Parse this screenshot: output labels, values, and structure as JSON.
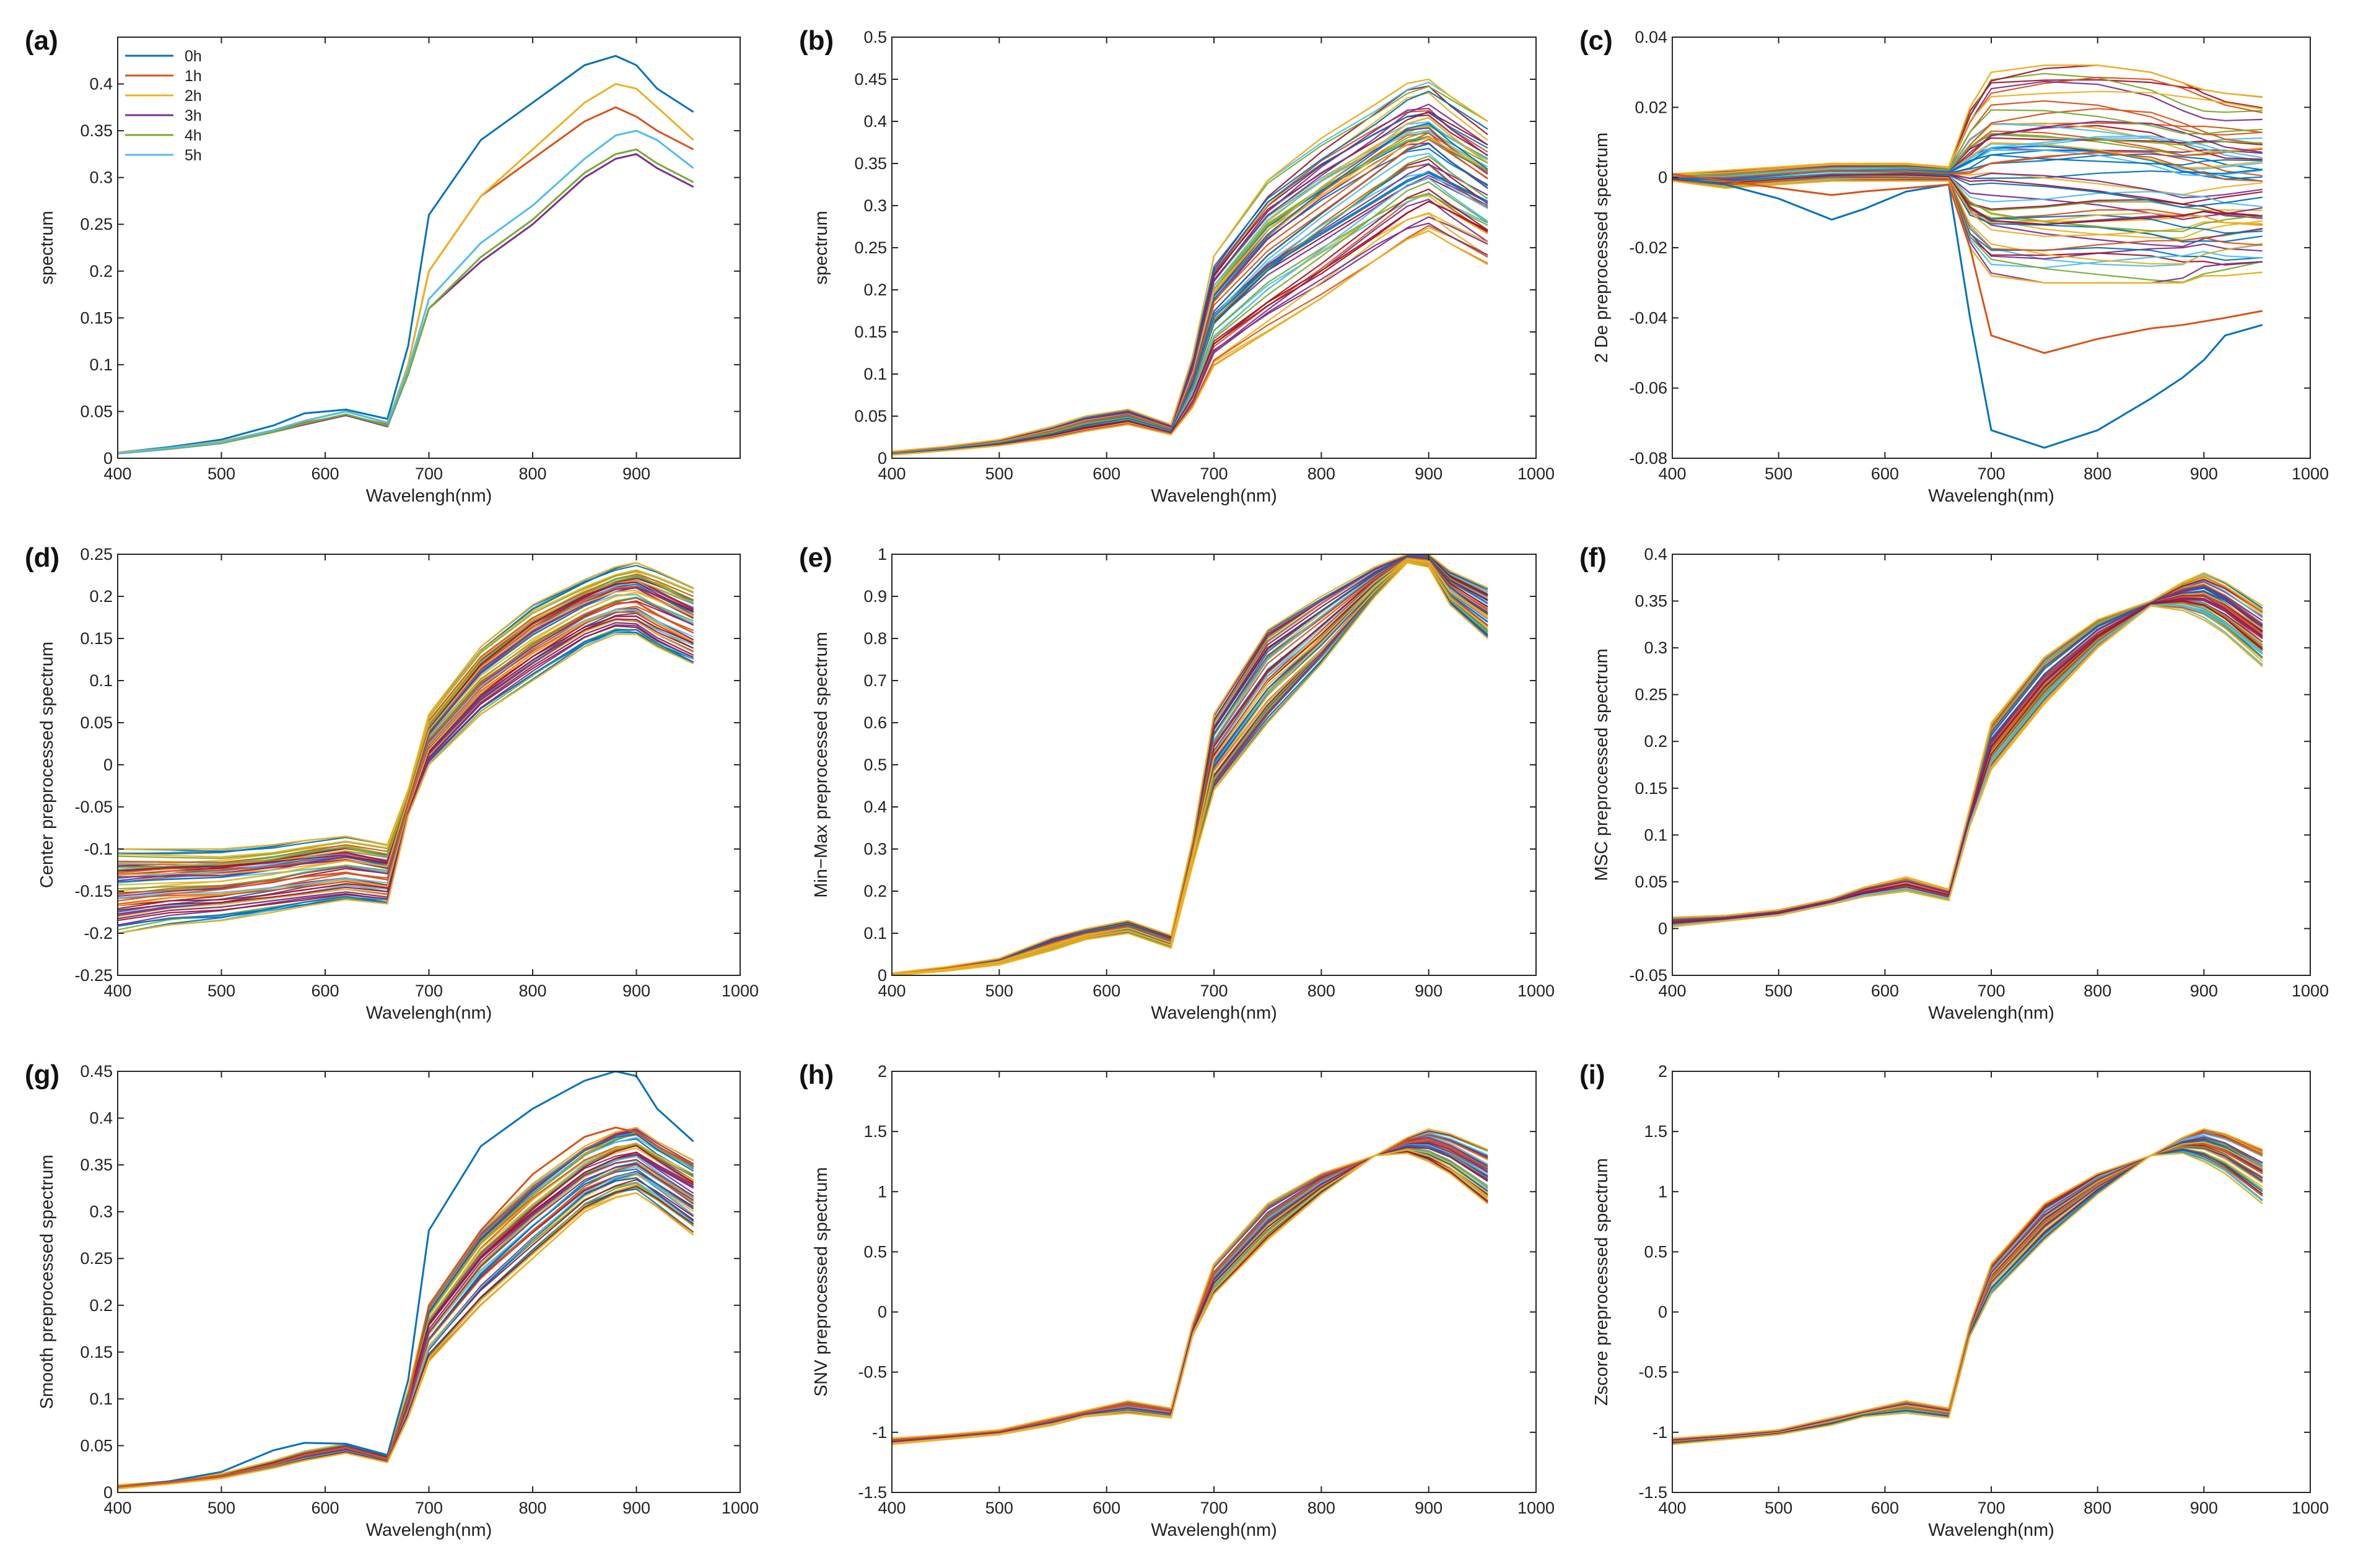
{
  "figure": {
    "palette": [
      "#0072BD",
      "#D95319",
      "#EDB120",
      "#7E2F8E",
      "#77AC30",
      "#4DBEEE",
      "#A2142F"
    ]
  },
  "chart_data": [
    {
      "panel": "(a)",
      "type": "line",
      "xlabel": "Wavelengh(nm)",
      "ylabel": "spectrum",
      "xlim": [
        400,
        1000
      ],
      "ylim": [
        0,
        0.45
      ],
      "xticks": [
        "400",
        "500",
        "600",
        "700",
        "800",
        "900"
      ],
      "yticks": [
        "0",
        "0.05",
        "0.1",
        "0.15",
        "0.2",
        "0.25",
        "0.3",
        "0.35",
        "0.4"
      ],
      "x": [
        400,
        450,
        500,
        550,
        580,
        620,
        660,
        680,
        700,
        750,
        800,
        850,
        880,
        900,
        920,
        955
      ],
      "series": [
        {
          "name": "0h",
          "color": "#0072BD",
          "values": [
            0.006,
            0.012,
            0.02,
            0.035,
            0.048,
            0.052,
            0.042,
            0.12,
            0.26,
            0.34,
            0.38,
            0.42,
            0.43,
            0.42,
            0.395,
            0.37
          ]
        },
        {
          "name": "1h",
          "color": "#D95319",
          "values": [
            0.006,
            0.011,
            0.018,
            0.03,
            0.038,
            0.046,
            0.036,
            0.1,
            0.2,
            0.28,
            0.32,
            0.36,
            0.375,
            0.365,
            0.35,
            0.33
          ]
        },
        {
          "name": "2h",
          "color": "#EDB120",
          "values": [
            0.006,
            0.011,
            0.018,
            0.03,
            0.04,
            0.05,
            0.038,
            0.1,
            0.2,
            0.28,
            0.33,
            0.38,
            0.4,
            0.395,
            0.375,
            0.34
          ]
        },
        {
          "name": "3h",
          "color": "#7E2F8E",
          "values": [
            0.005,
            0.01,
            0.016,
            0.028,
            0.036,
            0.046,
            0.034,
            0.09,
            0.16,
            0.21,
            0.25,
            0.3,
            0.32,
            0.325,
            0.31,
            0.29
          ]
        },
        {
          "name": "4h",
          "color": "#77AC30",
          "values": [
            0.005,
            0.01,
            0.016,
            0.028,
            0.037,
            0.047,
            0.035,
            0.09,
            0.16,
            0.215,
            0.255,
            0.305,
            0.325,
            0.33,
            0.315,
            0.295
          ]
        },
        {
          "name": "5h",
          "color": "#4DBEEE",
          "values": [
            0.005,
            0.011,
            0.017,
            0.03,
            0.04,
            0.05,
            0.038,
            0.095,
            0.17,
            0.23,
            0.27,
            0.32,
            0.345,
            0.35,
            0.34,
            0.31
          ]
        }
      ],
      "legend": "top-left"
    },
    {
      "panel": "(b)",
      "type": "line",
      "bundle": true,
      "count": 60,
      "xlabel": "Wavelengh(nm)",
      "ylabel": "spectrum",
      "xlim": [
        400,
        1000
      ],
      "ylim": [
        0,
        0.5
      ],
      "xticks": [
        "400",
        "500",
        "600",
        "700",
        "800",
        "900",
        "1000"
      ],
      "yticks": [
        "0",
        "0.05",
        "0.1",
        "0.15",
        "0.2",
        "0.25",
        "0.3",
        "0.35",
        "0.4",
        "0.45",
        "0.5"
      ],
      "x": [
        400,
        450,
        500,
        550,
        580,
        620,
        660,
        680,
        700,
        750,
        800,
        850,
        880,
        900,
        920,
        955
      ],
      "low": [
        0.004,
        0.009,
        0.015,
        0.024,
        0.032,
        0.04,
        0.028,
        0.06,
        0.11,
        0.15,
        0.19,
        0.235,
        0.26,
        0.27,
        0.255,
        0.23
      ],
      "high": [
        0.008,
        0.014,
        0.022,
        0.038,
        0.05,
        0.058,
        0.04,
        0.12,
        0.24,
        0.33,
        0.38,
        0.42,
        0.445,
        0.45,
        0.43,
        0.4
      ]
    },
    {
      "panel": "(c)",
      "type": "line",
      "bundle": true,
      "count": 60,
      "xlabel": "Wavelengh(nm)",
      "ylabel": "2 De preprocessed spectrum",
      "xlim": [
        400,
        1000
      ],
      "ylim": [
        -0.08,
        0.04
      ],
      "xticks": [
        "400",
        "500",
        "600",
        "700",
        "800",
        "900",
        "1000"
      ],
      "yticks": [
        "-0.08",
        "-0.06",
        "-0.04",
        "-0.02",
        "0",
        "0.02",
        "0.04"
      ],
      "x": [
        400,
        450,
        500,
        550,
        580,
        620,
        660,
        680,
        700,
        750,
        800,
        850,
        880,
        900,
        920,
        955
      ],
      "low": [
        -0.001,
        -0.003,
        -0.002,
        -0.001,
        -0.001,
        -0.001,
        -0.001,
        -0.02,
        -0.028,
        -0.03,
        -0.03,
        -0.03,
        -0.03,
        -0.028,
        -0.028,
        -0.027
      ],
      "high": [
        0.001,
        0.002,
        0.003,
        0.004,
        0.004,
        0.004,
        0.003,
        0.02,
        0.03,
        0.032,
        0.032,
        0.03,
        0.027,
        0.025,
        0.024,
        0.023
      ],
      "outliers": [
        {
          "color": "#0072BD",
          "values": [
            0,
            -0.002,
            -0.006,
            -0.012,
            -0.009,
            -0.004,
            -0.002,
            -0.04,
            -0.072,
            -0.077,
            -0.072,
            -0.063,
            -0.057,
            -0.052,
            -0.045,
            -0.042
          ]
        },
        {
          "color": "#D95319",
          "values": [
            0.001,
            -0.001,
            -0.003,
            -0.005,
            -0.004,
            -0.003,
            -0.002,
            -0.02,
            -0.045,
            -0.05,
            -0.046,
            -0.043,
            -0.042,
            -0.041,
            -0.04,
            -0.038
          ]
        }
      ]
    },
    {
      "panel": "(d)",
      "type": "line",
      "bundle": true,
      "count": 60,
      "xlabel": "Wavelengh(nm)",
      "ylabel": "Center preprocessed spectrum",
      "xlim": [
        400,
        1000
      ],
      "ylim": [
        -0.25,
        0.25
      ],
      "xticks": [
        "400",
        "500",
        "600",
        "700",
        "800",
        "900",
        "1000"
      ],
      "yticks": [
        "-0.25",
        "-0.2",
        "-0.15",
        "-0.1",
        "-0.05",
        "0",
        "0.05",
        "0.1",
        "0.15",
        "0.2",
        "0.25"
      ],
      "x": [
        400,
        450,
        500,
        550,
        580,
        620,
        660,
        680,
        700,
        750,
        800,
        850,
        880,
        900,
        920,
        955
      ],
      "low": [
        -0.2,
        -0.19,
        -0.185,
        -0.175,
        -0.168,
        -0.16,
        -0.165,
        -0.06,
        0.0,
        0.06,
        0.1,
        0.14,
        0.155,
        0.155,
        0.14,
        0.12
      ],
      "high": [
        -0.1,
        -0.1,
        -0.1,
        -0.095,
        -0.09,
        -0.085,
        -0.095,
        -0.03,
        0.06,
        0.14,
        0.19,
        0.22,
        0.235,
        0.24,
        0.23,
        0.21
      ]
    },
    {
      "panel": "(e)",
      "type": "line",
      "bundle": true,
      "count": 60,
      "xlabel": "Wavelengh(nm)",
      "ylabel": "Min−Max preprocessed spectrum",
      "xlim": [
        400,
        1000
      ],
      "ylim": [
        0,
        1
      ],
      "xticks": [
        "400",
        "500",
        "600",
        "700",
        "800",
        "900",
        "1000"
      ],
      "yticks": [
        "0",
        "0.1",
        "0.2",
        "0.3",
        "0.4",
        "0.5",
        "0.6",
        "0.7",
        "0.8",
        "0.9",
        "1"
      ],
      "x": [
        400,
        450,
        500,
        550,
        580,
        620,
        660,
        680,
        700,
        750,
        800,
        850,
        880,
        900,
        920,
        955
      ],
      "low": [
        0,
        0.01,
        0.025,
        0.06,
        0.085,
        0.1,
        0.065,
        0.26,
        0.44,
        0.6,
        0.74,
        0.9,
        0.98,
        0.97,
        0.88,
        0.8
      ],
      "high": [
        0.005,
        0.02,
        0.04,
        0.09,
        0.11,
        0.13,
        0.095,
        0.32,
        0.62,
        0.82,
        0.9,
        0.97,
        1.0,
        1.0,
        0.96,
        0.92
      ]
    },
    {
      "panel": "(f)",
      "type": "line",
      "bundle": true,
      "count": 60,
      "xlabel": "Wavelengh(nm)",
      "ylabel": "MSC preprocessed spectrum",
      "xlim": [
        400,
        1000
      ],
      "ylim": [
        -0.05,
        0.4
      ],
      "xticks": [
        "400",
        "500",
        "600",
        "700",
        "800",
        "900",
        "1000"
      ],
      "yticks": [
        "-0.05",
        "0",
        "0.05",
        "0.1",
        "0.15",
        "0.2",
        "0.25",
        "0.3",
        "0.35",
        "0.4"
      ],
      "x": [
        400,
        450,
        500,
        550,
        580,
        620,
        660,
        680,
        700,
        750,
        800,
        850,
        880,
        900,
        920,
        955
      ],
      "low": [
        0.002,
        0.008,
        0.014,
        0.026,
        0.034,
        0.04,
        0.03,
        0.11,
        0.17,
        0.24,
        0.3,
        0.345,
        0.34,
        0.33,
        0.315,
        0.28
      ],
      "high": [
        0.012,
        0.014,
        0.02,
        0.032,
        0.044,
        0.055,
        0.042,
        0.13,
        0.22,
        0.29,
        0.33,
        0.35,
        0.37,
        0.38,
        0.37,
        0.345
      ]
    },
    {
      "panel": "(g)",
      "type": "line",
      "bundle": true,
      "count": 60,
      "xlabel": "Wavelengh(nm)",
      "ylabel": "Smooth preprocessed spectrum",
      "xlim": [
        400,
        1000
      ],
      "ylim": [
        0,
        0.45
      ],
      "xticks": [
        "400",
        "500",
        "600",
        "700",
        "800",
        "900",
        "1000"
      ],
      "yticks": [
        "0",
        "0.05",
        "0.1",
        "0.15",
        "0.2",
        "0.25",
        "0.3",
        "0.35",
        "0.4",
        "0.45"
      ],
      "x": [
        400,
        450,
        500,
        550,
        580,
        620,
        660,
        680,
        700,
        750,
        800,
        850,
        880,
        900,
        920,
        955
      ],
      "low": [
        0.004,
        0.009,
        0.015,
        0.026,
        0.034,
        0.042,
        0.032,
        0.08,
        0.14,
        0.2,
        0.25,
        0.3,
        0.315,
        0.32,
        0.305,
        0.275
      ],
      "high": [
        0.008,
        0.012,
        0.02,
        0.034,
        0.044,
        0.052,
        0.04,
        0.11,
        0.2,
        0.28,
        0.33,
        0.37,
        0.385,
        0.39,
        0.375,
        0.355
      ],
      "outliers": [
        {
          "color": "#0072BD",
          "values": [
            0.006,
            0.012,
            0.022,
            0.045,
            0.053,
            0.052,
            0.04,
            0.12,
            0.28,
            0.37,
            0.41,
            0.44,
            0.45,
            0.445,
            0.41,
            0.375
          ]
        },
        {
          "color": "#D95319",
          "values": [
            0.006,
            0.011,
            0.018,
            0.03,
            0.04,
            0.048,
            0.036,
            0.1,
            0.2,
            0.28,
            0.34,
            0.38,
            0.39,
            0.385,
            0.37,
            0.35
          ]
        }
      ]
    },
    {
      "panel": "(h)",
      "type": "line",
      "bundle": true,
      "count": 60,
      "xlabel": "Wavelengh(nm)",
      "ylabel": "SNV preprocessed spectrum",
      "xlim": [
        400,
        1000
      ],
      "ylim": [
        -1.5,
        2
      ],
      "xticks": [
        "400",
        "500",
        "600",
        "700",
        "800",
        "900",
        "1000"
      ],
      "yticks": [
        "-1.5",
        "-1",
        "-0.5",
        "0",
        "0.5",
        "1",
        "1.5",
        "2"
      ],
      "x": [
        400,
        450,
        500,
        550,
        580,
        620,
        660,
        680,
        700,
        750,
        800,
        850,
        880,
        900,
        920,
        955
      ],
      "low": [
        -1.1,
        -1.06,
        -1.02,
        -0.94,
        -0.87,
        -0.84,
        -0.88,
        -0.2,
        0.15,
        0.6,
        0.98,
        1.3,
        1.32,
        1.25,
        1.15,
        0.9
      ],
      "high": [
        -1.05,
        -1.02,
        -0.98,
        -0.88,
        -0.82,
        -0.74,
        -0.8,
        -0.1,
        0.4,
        0.9,
        1.15,
        1.3,
        1.45,
        1.52,
        1.48,
        1.35
      ]
    },
    {
      "panel": "(i)",
      "type": "line",
      "bundle": true,
      "count": 60,
      "xlabel": "Wavelengh(nm)",
      "ylabel": "Zscore preprocessed spectrum",
      "xlim": [
        400,
        1000
      ],
      "ylim": [
        -1.5,
        2
      ],
      "xticks": [
        "400",
        "500",
        "600",
        "700",
        "800",
        "900",
        "1000"
      ],
      "yticks": [
        "-1.5",
        "-1",
        "-0.5",
        "0",
        "0.5",
        "1",
        "1.5",
        "2"
      ],
      "x": [
        400,
        450,
        500,
        550,
        580,
        620,
        660,
        680,
        700,
        750,
        800,
        850,
        880,
        900,
        920,
        955
      ],
      "low": [
        -1.1,
        -1.06,
        -1.02,
        -0.94,
        -0.87,
        -0.84,
        -0.88,
        -0.2,
        0.15,
        0.6,
        0.98,
        1.3,
        1.32,
        1.25,
        1.15,
        0.9
      ],
      "high": [
        -1.05,
        -1.02,
        -0.98,
        -0.88,
        -0.82,
        -0.74,
        -0.8,
        -0.1,
        0.4,
        0.9,
        1.15,
        1.3,
        1.45,
        1.52,
        1.48,
        1.35
      ]
    }
  ]
}
